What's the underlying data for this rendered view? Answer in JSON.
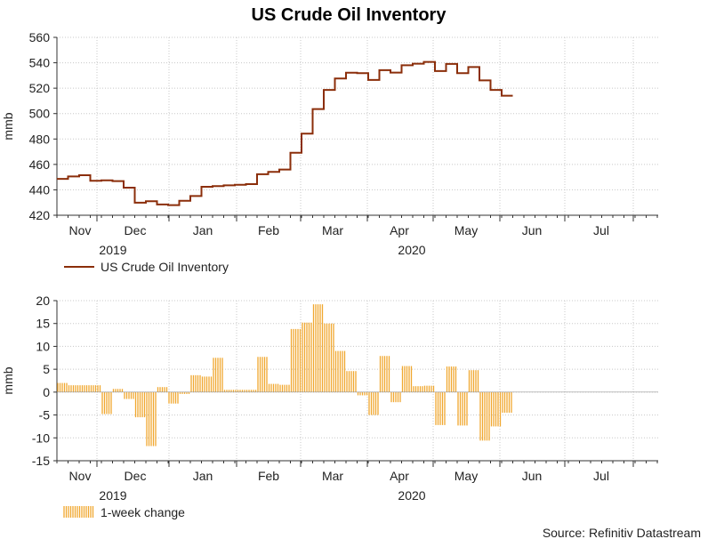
{
  "chart_data": [
    {
      "type": "line",
      "title": "US Crude Oil Inventory",
      "ylabel": "mmb",
      "ylim": [
        420,
        560
      ],
      "yticks": [
        420,
        440,
        460,
        480,
        500,
        520,
        540,
        560
      ],
      "months": [
        "Nov",
        "Dec",
        "Jan",
        "Feb",
        "Mar",
        "Apr",
        "May",
        "Jun",
        "Jul"
      ],
      "years": [
        "2019",
        "2020"
      ],
      "legend": "US Crude Oil Inventory",
      "color": "#8b2e0a",
      "x_unit": "weeks since 2019-10-18",
      "series": [
        {
          "name": "US Crude Oil Inventory",
          "values": [
            448.6,
            450.5,
            451.5,
            447.1,
            447.5,
            446.9,
            441.7,
            429.9,
            431.0,
            428.5,
            428.0,
            431.4,
            435.1,
            442.4,
            442.9,
            443.5,
            444.0,
            444.5,
            452.3,
            454.1,
            456.0,
            469.2,
            484.2,
            503.6,
            518.6,
            527.6,
            532.2,
            531.8,
            526.5,
            534.2,
            532.3,
            538.0,
            539.3,
            540.7,
            533.5,
            539.1,
            531.8,
            536.6,
            526.1,
            518.6,
            514.1
          ]
        }
      ]
    },
    {
      "type": "bar",
      "title": "",
      "ylabel": "mmb",
      "ylim": [
        -15,
        20
      ],
      "yticks": [
        -15,
        -10,
        -5,
        0,
        5,
        10,
        15,
        20
      ],
      "months": [
        "Nov",
        "Dec",
        "Jan",
        "Feb",
        "Mar",
        "Apr",
        "May",
        "Jun",
        "Jul"
      ],
      "years": [
        "2019",
        "2020"
      ],
      "legend": "1-week change",
      "color": "#f0a830",
      "x_unit": "weeks since 2019-10-18",
      "series": [
        {
          "name": "1-week change",
          "values": [
            2.0,
            1.5,
            1.5,
            1.5,
            -4.8,
            0.7,
            -1.5,
            -5.5,
            -11.8,
            1.1,
            -2.5,
            -0.4,
            3.7,
            3.4,
            7.5,
            0.5,
            0.5,
            0.5,
            7.7,
            1.8,
            1.6,
            13.8,
            15.2,
            19.2,
            15.0,
            9.0,
            4.6,
            -0.7,
            -5.0,
            7.9,
            -2.2,
            5.7,
            1.3,
            1.4,
            -7.2,
            5.6,
            -7.3,
            4.8,
            -10.6,
            -7.5,
            -4.5
          ]
        }
      ]
    }
  ],
  "source": "Source: Refinitiv Datastream"
}
